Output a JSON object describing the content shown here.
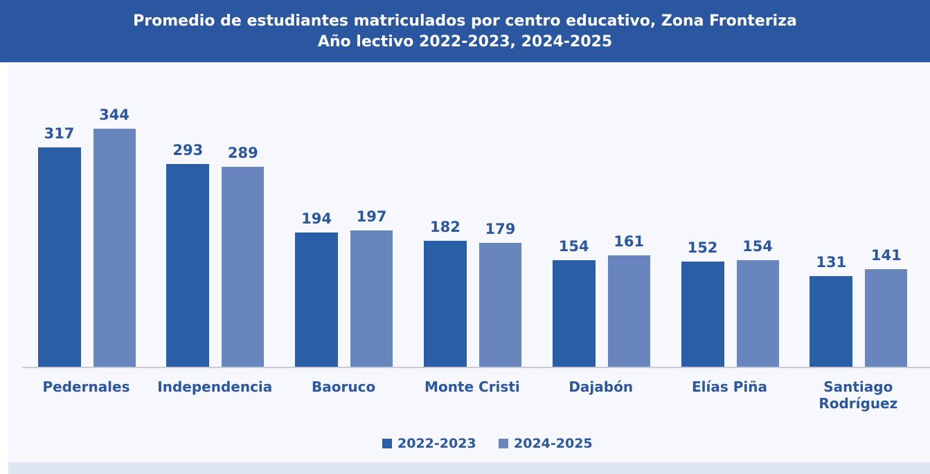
{
  "chart_data": {
    "type": "bar",
    "title": "Promedio de estudiantes matriculados por centro educativo, Zona Fronteriza",
    "subtitle": "Año lectivo 2022-2023, 2024-2025",
    "categories": [
      "Pedernales",
      "Independencia",
      "Baoruco",
      "Monte Cristi",
      "Dajabón",
      "Elías Piña",
      "Santiago Rodríguez"
    ],
    "series": [
      {
        "name": "2022-2023",
        "color": "#2a5fa8",
        "values": [
          317,
          293,
          194,
          182,
          154,
          152,
          131
        ]
      },
      {
        "name": "2024-2025",
        "color": "#6886bd",
        "values": [
          344,
          289,
          197,
          179,
          161,
          154,
          141
        ]
      }
    ],
    "legend": "bottom"
  }
}
